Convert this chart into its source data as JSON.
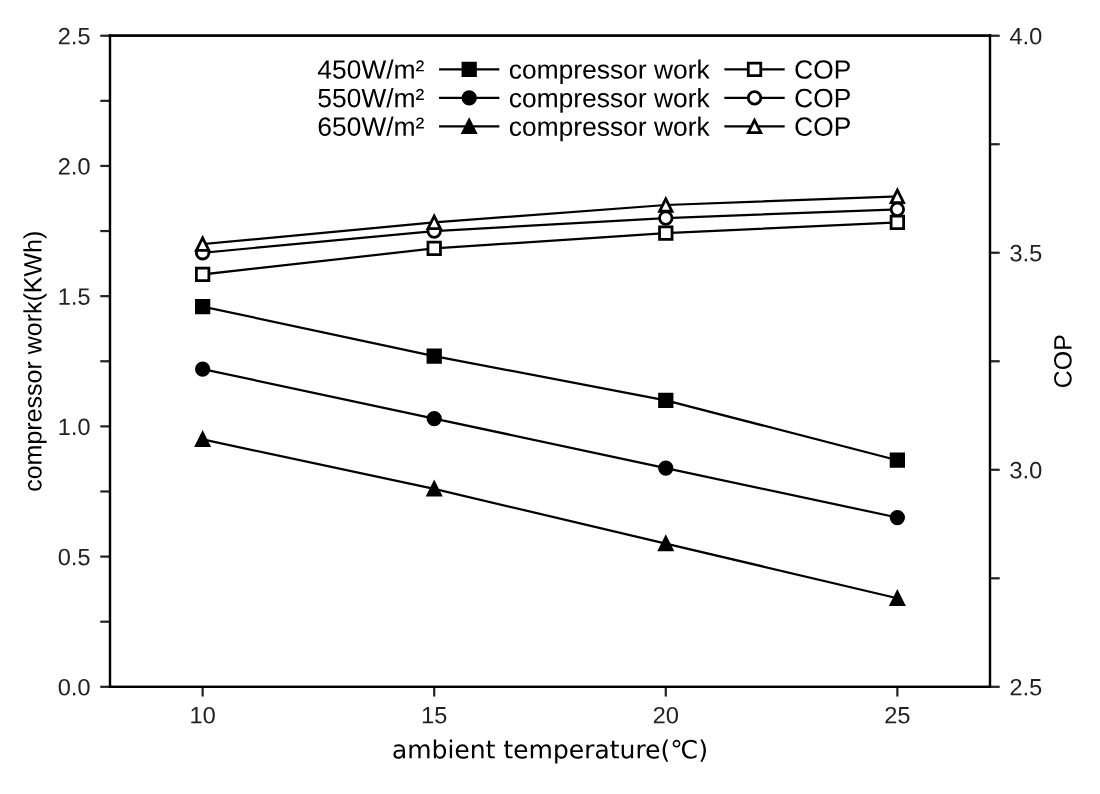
{
  "chart_data": {
    "type": "line",
    "xlabel": "ambient temperature(℃)",
    "ylabel": "compressor work(KWh)",
    "y2label": "COP",
    "x": [
      10,
      15,
      20,
      25
    ],
    "xlim": [
      8,
      27
    ],
    "xticks": [
      10,
      15,
      20,
      25
    ],
    "ylim": [
      0,
      2.5
    ],
    "yticks": [
      {
        "value": 0,
        "label": "0.0"
      },
      {
        "value": 0.25,
        "label": null
      },
      {
        "value": 0.5,
        "label": "0.5"
      },
      {
        "value": 0.75,
        "label": null
      },
      {
        "value": 1.0,
        "label": "1.0"
      },
      {
        "value": 1.25,
        "label": null
      },
      {
        "value": 1.5,
        "label": "1.5"
      },
      {
        "value": 1.75,
        "label": null
      },
      {
        "value": 2.0,
        "label": "2.0"
      },
      {
        "value": 2.25,
        "label": null
      },
      {
        "value": 2.5,
        "label": "2.5"
      }
    ],
    "y2lim": [
      2.5,
      4.0
    ],
    "y2ticks": [
      {
        "value": 2.5,
        "label": "2.5"
      },
      {
        "value": 2.75,
        "label": null
      },
      {
        "value": 3.0,
        "label": "3.0"
      },
      {
        "value": 3.25,
        "label": null
      },
      {
        "value": 3.5,
        "label": "3.5"
      },
      {
        "value": 3.75,
        "label": null
      },
      {
        "value": 4.0,
        "label": "4.0"
      }
    ],
    "annotations": [
      "450W/m²",
      "550W/m²",
      "650W/m²"
    ],
    "legend": "top",
    "grid": false,
    "series": [
      {
        "name": "compressor work",
        "color": "#000000",
        "marker": "square",
        "values": [
          1.46,
          1.27,
          1.1,
          0.87
        ]
      },
      {
        "name": "compressor work",
        "color": "#000000",
        "marker": "circle",
        "values": [
          1.22,
          1.03,
          0.84,
          0.65
        ]
      },
      {
        "name": "compressor work",
        "color": "#000000",
        "marker": "triangle",
        "values": [
          0.95,
          0.76,
          0.55,
          0.34
        ]
      },
      {
        "name": "COP",
        "color": "#000000",
        "marker": "square",
        "axis": "y2",
        "values": [
          3.45,
          3.51,
          3.545,
          3.57
        ]
      },
      {
        "name": "COP",
        "color": "#000000",
        "marker": "circle",
        "axis": "y2",
        "values": [
          3.5,
          3.55,
          3.58,
          3.6
        ]
      },
      {
        "name": "COP",
        "color": "#000000",
        "marker": "triangle",
        "axis": "y2",
        "values": [
          3.52,
          3.57,
          3.61,
          3.63
        ]
      }
    ]
  }
}
